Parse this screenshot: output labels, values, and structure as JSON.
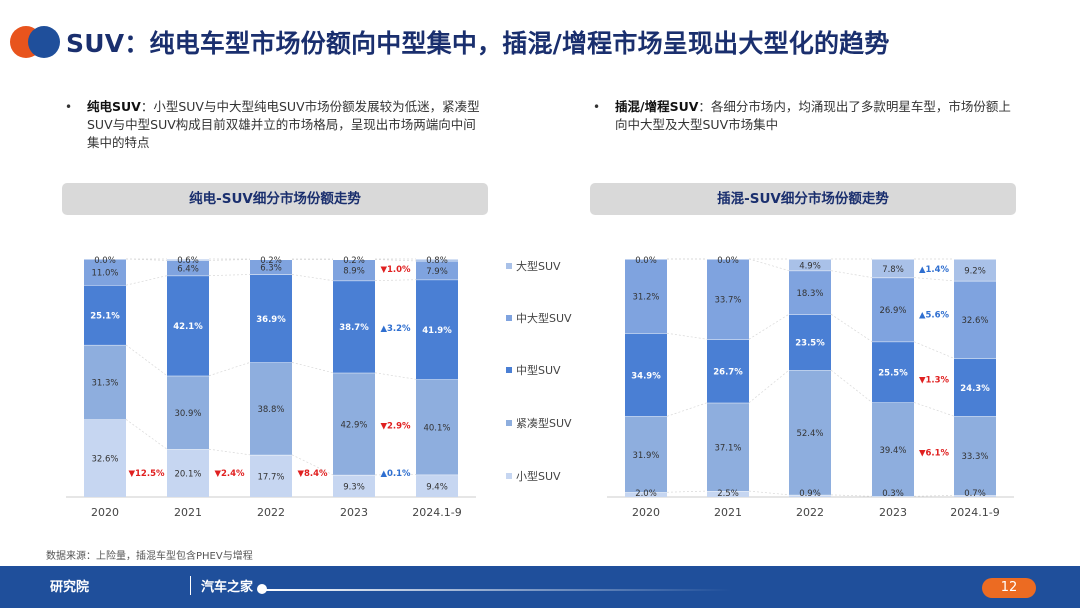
{
  "title": "SUV：纯电车型市场份额向中型集中，插混/增程市场呈现出大型化的趋势",
  "bullets": [
    {
      "heading": "纯电SUV",
      "sep": "：",
      "text": "小型SUV与中大型纯电SUV市场份额发展较为低迷，紧凑型SUV与中型SUV构成目前双雄并立的市场格局，呈现出市场两端向中间集中的特点"
    },
    {
      "heading": "插混/增程SUV",
      "sep": "：",
      "text": "各细分市场内，均涌现出了多款明星车型，市场份额上向中大型及大型SUV市场集中"
    }
  ],
  "legend": [
    "大型SUV",
    "中大型SUV",
    "中型SUV",
    "紧凑型SUV",
    "小型SUV"
  ],
  "colors": {
    "大型SUV": "#a9c1e8",
    "中大型SUV": "#7fa3df",
    "中型SUV": "#4a7fd4",
    "紧凑型SUV": "#8eaede",
    "小型SUV": "#c6d6f1",
    "down": "#e02020",
    "up": "#2f6fd0"
  },
  "chart_data": [
    {
      "type": "bar",
      "stacked": true,
      "title": "纯电-SUV细分市场份额走势",
      "categories": [
        "2020",
        "2021",
        "2022",
        "2023",
        "2024.1-9"
      ],
      "ylim": [
        0,
        100
      ],
      "series": [
        {
          "name": "小型SUV",
          "values": [
            32.6,
            20.1,
            17.7,
            9.3,
            9.4
          ]
        },
        {
          "name": "紧凑型SUV",
          "values": [
            31.3,
            30.9,
            38.8,
            42.9,
            40.1
          ]
        },
        {
          "name": "中型SUV",
          "values": [
            25.1,
            42.1,
            36.9,
            38.7,
            41.9
          ]
        },
        {
          "name": "中大型SUV",
          "values": [
            11.0,
            6.4,
            6.3,
            8.9,
            7.9
          ]
        },
        {
          "name": "大型SUV",
          "values": [
            0.0,
            0.6,
            0.2,
            0.2,
            0.8
          ]
        }
      ],
      "value_labels": {
        "大型SUV": [
          "0.0%",
          "0.6%",
          "0.2%",
          "0.2%",
          "0.8%"
        ],
        "中大型SUV": [
          "11.0%",
          "6.4%",
          "6.3%",
          "8.9%",
          "7.9%"
        ],
        "中型SUV": [
          "25.1%",
          "42.1%",
          "36.9%",
          "38.7%",
          "41.9%"
        ],
        "紧凑型SUV": [
          "31.3%",
          "30.9%",
          "38.8%",
          "42.9%",
          "40.1%"
        ],
        "小型SUV": [
          "32.6%",
          "20.1%",
          "17.7%",
          "9.3%",
          "9.4%"
        ]
      },
      "annotations": [
        {
          "after_category": "2020",
          "series": "小型SUV",
          "direction": "down",
          "text": "12.5%"
        },
        {
          "after_category": "2021",
          "series": "小型SUV",
          "direction": "down",
          "text": "2.4%"
        },
        {
          "after_category": "2022",
          "series": "小型SUV",
          "direction": "down",
          "text": "8.4%"
        },
        {
          "after_category": "2023",
          "series": "小型SUV",
          "direction": "up",
          "text": "0.1%"
        },
        {
          "after_category": "2023",
          "series": "紧凑型SUV",
          "direction": "down",
          "text": "2.9%"
        },
        {
          "after_category": "2023",
          "series": "中型SUV",
          "direction": "up",
          "text": "3.2%"
        },
        {
          "after_category": "2023",
          "series": "中大型SUV",
          "direction": "down",
          "text": "1.0%"
        }
      ]
    },
    {
      "type": "bar",
      "stacked": true,
      "title": "插混-SUV细分市场份额走势",
      "categories": [
        "2020",
        "2021",
        "2022",
        "2023",
        "2024.1-9"
      ],
      "ylim": [
        0,
        100
      ],
      "series": [
        {
          "name": "小型SUV",
          "values": [
            2.0,
            2.5,
            0.9,
            0.3,
            0.7
          ]
        },
        {
          "name": "紧凑型SUV",
          "values": [
            31.9,
            37.1,
            52.4,
            39.4,
            33.3
          ]
        },
        {
          "name": "中型SUV",
          "values": [
            34.9,
            26.7,
            23.5,
            25.5,
            24.3
          ]
        },
        {
          "name": "中大型SUV",
          "values": [
            31.2,
            33.7,
            18.3,
            26.9,
            32.6
          ]
        },
        {
          "name": "大型SUV",
          "values": [
            0.0,
            0.0,
            4.9,
            7.8,
            9.2
          ]
        }
      ],
      "value_labels": {
        "大型SUV": [
          "0.0%",
          "0.0%",
          "4.9%",
          "7.8%",
          "9.2%"
        ],
        "中大型SUV": [
          "31.2%",
          "33.7%",
          "18.3%",
          "26.9%",
          "32.6%"
        ],
        "中型SUV": [
          "34.9%",
          "26.7%",
          "23.5%",
          "25.5%",
          "24.3%"
        ],
        "紧凑型SUV": [
          "31.9%",
          "37.1%",
          "52.4%",
          "39.4%",
          "33.3%"
        ],
        "小型SUV": [
          "2.0%",
          "2.5%",
          "0.9%",
          "0.3%",
          "0.7%"
        ]
      },
      "annotations": [
        {
          "after_category": "2023",
          "series": "大型SUV",
          "direction": "up",
          "text": "1.4%"
        },
        {
          "after_category": "2023",
          "series": "中大型SUV",
          "direction": "up",
          "text": "5.6%"
        },
        {
          "after_category": "2023",
          "series": "中型SUV",
          "direction": "down",
          "text": "1.3%"
        },
        {
          "after_category": "2023",
          "series": "紧凑型SUV",
          "direction": "down",
          "text": "6.1%"
        }
      ]
    }
  ],
  "source": "数据来源：上险量，插混车型包含PHEV与增程",
  "footer": {
    "org": "研究院",
    "brand": "汽车之家",
    "page": "12"
  }
}
